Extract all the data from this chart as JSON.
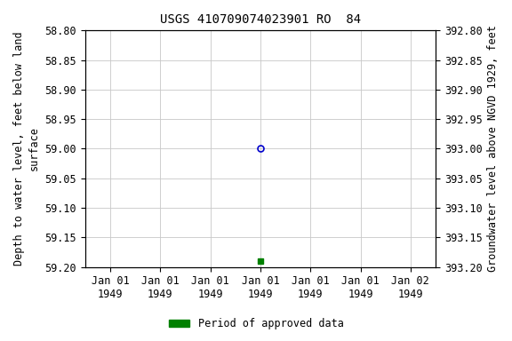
{
  "title": "USGS 410709074023901 RO  84",
  "ylabel_left": "Depth to water level, feet below land\nsurface",
  "ylabel_right": "Groundwater level above NGVD 1929, feet",
  "ylim_left": [
    58.8,
    59.2
  ],
  "yticks_left": [
    58.8,
    58.85,
    58.9,
    58.95,
    59.0,
    59.05,
    59.1,
    59.15,
    59.2
  ],
  "yticks_right": [
    393.2,
    393.15,
    393.1,
    393.05,
    393.0,
    392.95,
    392.9,
    392.85,
    392.8
  ],
  "xlim": [
    0,
    6
  ],
  "xtick_positions": [
    0,
    1,
    2,
    3,
    4,
    5,
    6
  ],
  "xtick_labels": [
    "Jan 01\n1949",
    "Jan 01\n1949",
    "Jan 01\n1949",
    "Jan 01\n1949",
    "Jan 01\n1949",
    "Jan 01\n1949",
    "Jan 02\n1949"
  ],
  "data_unapproved_x": 3,
  "data_unapproved_y": 59.0,
  "data_unapproved_color": "#0000cc",
  "data_approved_x": 3,
  "data_approved_y": 59.19,
  "data_approved_color": "#008000",
  "legend_label": "Period of approved data",
  "legend_color": "#008000",
  "background_color": "#ffffff",
  "grid_color": "#c8c8c8",
  "title_fontsize": 10,
  "label_fontsize": 8.5,
  "tick_fontsize": 8.5
}
